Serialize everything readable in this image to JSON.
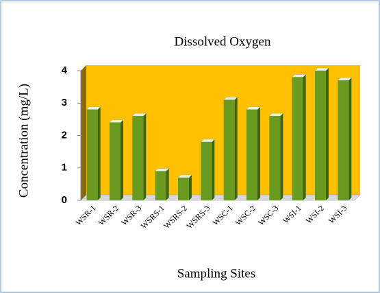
{
  "chart_data": {
    "type": "bar3d",
    "title": "Dissolved Oxygen",
    "x_label": "Sampling  Sites",
    "y_label": "Concentration (mg/L)",
    "categories": [
      "WSR-1",
      "WSR-2",
      "WSR-3",
      "WSRS-1",
      "WSRS-2",
      "WSRS-3",
      "WSC-1",
      "WSC-2",
      "WSC-3",
      "WSI-1",
      "WSI-2",
      "WSI-3"
    ],
    "values": [
      2.8,
      2.4,
      2.6,
      0.9,
      0.7,
      1.8,
      3.1,
      2.8,
      2.6,
      3.8,
      4.0,
      3.7
    ],
    "color": "#6a9a1f",
    "wall_color": "#ffc000",
    "ylim": [
      0,
      4
    ],
    "yticks": [
      0,
      1,
      2,
      3,
      4
    ]
  }
}
